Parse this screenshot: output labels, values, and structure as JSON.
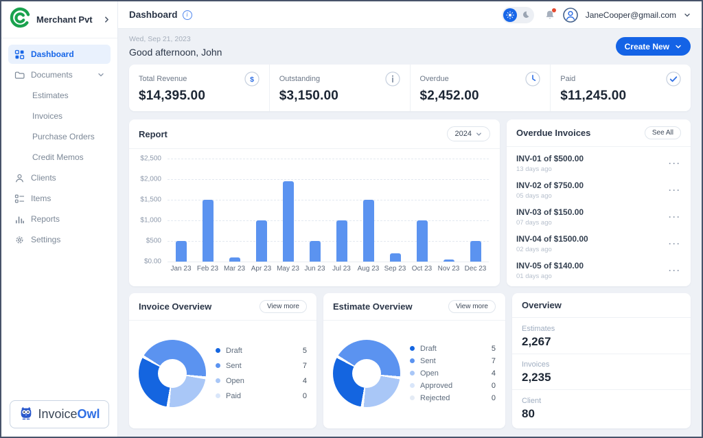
{
  "brand": {
    "company": "Merchant Pvt"
  },
  "sidebar": {
    "items": [
      {
        "label": "Dashboard",
        "icon": "grid",
        "active": true
      },
      {
        "label": "Documents",
        "icon": "folder",
        "chevron": true
      },
      {
        "label": "Estimates",
        "indent": true
      },
      {
        "label": "Invoices",
        "indent": true
      },
      {
        "label": "Purchase Orders",
        "indent": true
      },
      {
        "label": "Credit Memos",
        "indent": true
      },
      {
        "label": "Clients",
        "icon": "person"
      },
      {
        "label": "Items",
        "icon": "list"
      },
      {
        "label": "Reports",
        "icon": "bars"
      },
      {
        "label": "Settings",
        "icon": "gear"
      }
    ],
    "logo": {
      "part1": "Invoice",
      "part2": "Owl"
    }
  },
  "topbar": {
    "title": "Dashboard",
    "email": "JaneCooper@gmail.com"
  },
  "header": {
    "date": "Wed, Sep 21, 2023",
    "greeting": "Good afternoon, John",
    "create_button": "Create New"
  },
  "stats": [
    {
      "label": "Total Revenue",
      "value": "$14,395.00",
      "icon": "dollar-circle-icon"
    },
    {
      "label": "Outstanding",
      "value": "$3,150.00",
      "icon": "info-circle-icon"
    },
    {
      "label": "Overdue",
      "value": "$2,452.00",
      "icon": "clock-icon"
    },
    {
      "label": "Paid",
      "value": "$11,245.00",
      "icon": "check-circle-icon"
    }
  ],
  "report": {
    "title": "Report",
    "year": "2024"
  },
  "overdue_invoices": {
    "title": "Overdue Invoices",
    "see_all": "See All",
    "items": [
      {
        "title": "INV-01 of $500.00",
        "age": "13 days ago"
      },
      {
        "title": "INV-02 of $750.00",
        "age": "05 days ago"
      },
      {
        "title": "INV-03 of $150.00",
        "age": "07 days ago"
      },
      {
        "title": "INV-04 of $1500.00",
        "age": "02 days ago"
      },
      {
        "title": "INV-05 of $140.00",
        "age": "01 days ago"
      }
    ]
  },
  "invoice_overview": {
    "title": "Invoice Overview",
    "view_more": "View more"
  },
  "estimate_overview": {
    "title": "Estimate Overview",
    "view_more": "View more"
  },
  "overview": {
    "title": "Overview",
    "rows": [
      {
        "label": "Estimates",
        "value": "2,267"
      },
      {
        "label": "Invoices",
        "value": "2,235"
      },
      {
        "label": "Client",
        "value": "80"
      }
    ]
  },
  "colors": {
    "accent": "#1565e4",
    "bar": "#5b93f0",
    "sidebar_active": "#1766e8",
    "logo_green": "#1aa24e"
  },
  "chart_data": [
    {
      "type": "bar",
      "title": "Report",
      "categories": [
        "Jan 23",
        "Feb 23",
        "Mar 23",
        "Apr 23",
        "May 23",
        "Jun 23",
        "Jul 23",
        "Aug 23",
        "Sep 23",
        "Oct 23",
        "Nov 23",
        "Dec 23"
      ],
      "values": [
        500,
        1500,
        100,
        1000,
        1950,
        500,
        1000,
        1500,
        200,
        1000,
        50,
        500
      ],
      "xlabel": "",
      "ylabel": "",
      "ylim": [
        0,
        2500
      ],
      "yticks": [
        2500,
        2000,
        1500,
        1000,
        500,
        0
      ],
      "ytick_labels": [
        "$2,500",
        "$2,000",
        "$1,500",
        "$1,000",
        "$500",
        "$0.00"
      ],
      "bar_color": "#5b93f0",
      "grid": "horizontal-dashed",
      "legend": "none"
    },
    {
      "type": "pie",
      "title": "Invoice Overview",
      "donut": true,
      "start_angle_deg": 187.5,
      "legend_position": "right",
      "segments": [
        {
          "label": "Draft",
          "value": 5,
          "color": "#1465e0"
        },
        {
          "label": "Sent",
          "value": 7,
          "color": "#5b93f0"
        },
        {
          "label": "Open",
          "value": 4,
          "color": "#a9c7f7"
        },
        {
          "label": "Paid",
          "value": 0,
          "color": "#d9e6fa"
        }
      ]
    },
    {
      "type": "pie",
      "title": "Estimate Overview",
      "donut": true,
      "start_angle_deg": 187.5,
      "legend_position": "right",
      "segments": [
        {
          "label": "Draft",
          "value": 5,
          "color": "#1465e0"
        },
        {
          "label": "Sent",
          "value": 7,
          "color": "#5b93f0"
        },
        {
          "label": "Open",
          "value": 4,
          "color": "#a9c7f7"
        },
        {
          "label": "Approved",
          "value": 0,
          "color": "#d9e6fa"
        },
        {
          "label": "Rejected",
          "value": 0,
          "color": "#e4ebf5"
        }
      ]
    }
  ]
}
